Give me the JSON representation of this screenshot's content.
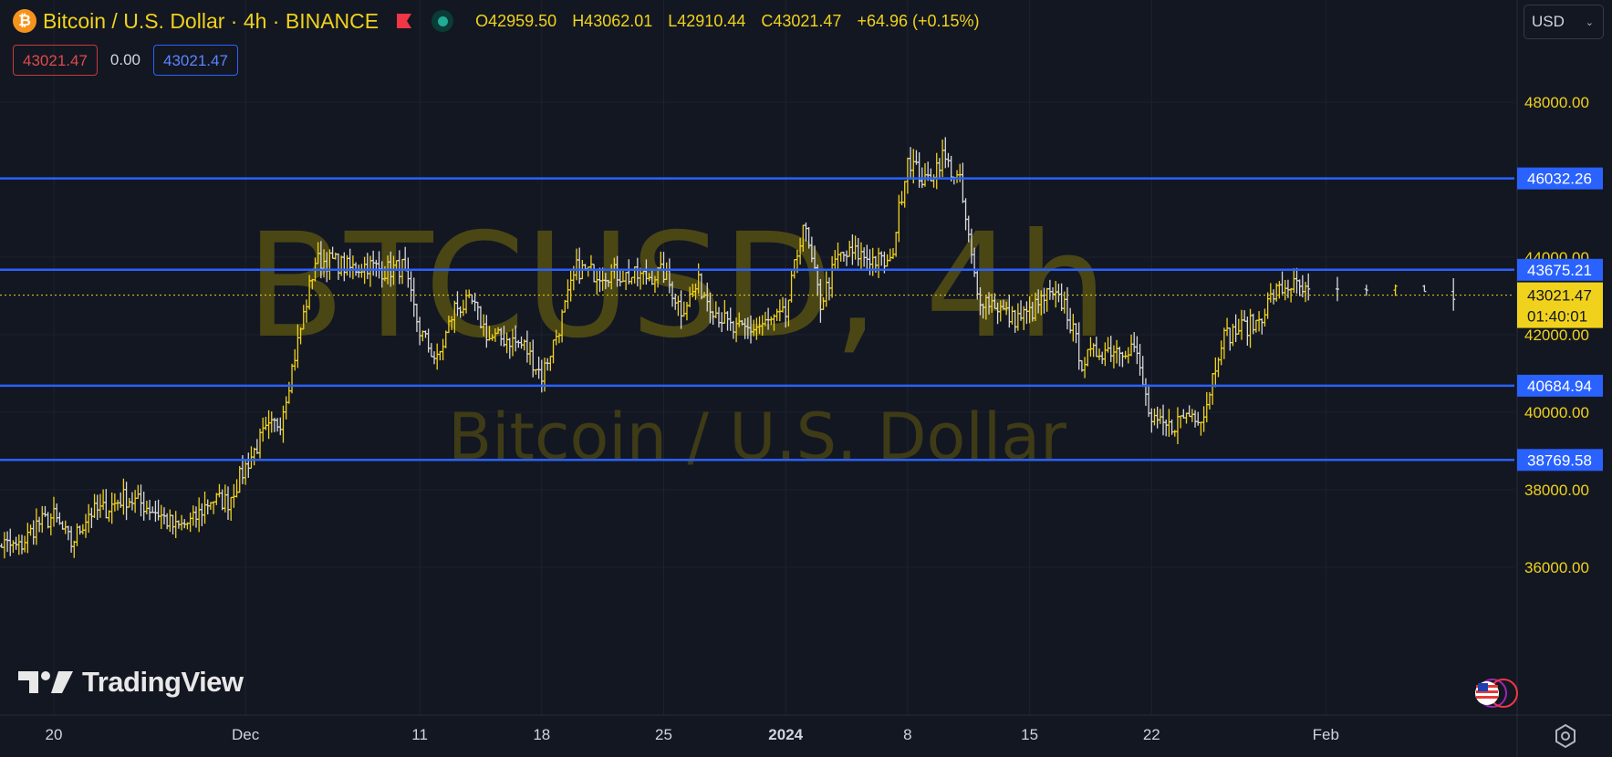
{
  "header": {
    "symbol_title": "Bitcoin / U.S. Dollar · 4h · BINANCE",
    "ohlc": {
      "open": "O42959.50",
      "high": "H43062.01",
      "low": "L42910.44",
      "close": "C43021.47",
      "change": "+64.96 (+0.15%)"
    },
    "bid": "43021.47",
    "spread": "0.00",
    "ask": "43021.47",
    "currency": "USD"
  },
  "icons": {
    "logo": "bitcoin-logo-icon",
    "flag": "red-flag-icon",
    "status": "market-status-icon",
    "currency_dropdown": "chevron-down-icon",
    "settings": "gear-icon",
    "events": "us-flag-icon"
  },
  "watermark": {
    "line1": "BTCUSD, 4h",
    "line2": "Bitcoin / U.S. Dollar"
  },
  "brand": "TradingView",
  "colors": {
    "background": "#131722",
    "candle": "#f0d21c",
    "candle_down": "#d8d8d8",
    "level_line": "#2962ff",
    "last_price": "#f0d21c",
    "watermark": "#4b4715"
  },
  "chart_data": {
    "type": "line",
    "title": "",
    "xlabel": "",
    "ylabel": "",
    "ylim": [
      34800,
      49900
    ],
    "y_ticks": [
      {
        "value": 36000,
        "label": "36000.00"
      },
      {
        "value": 38000,
        "label": "38000.00"
      },
      {
        "value": 40000,
        "label": "40000.00"
      },
      {
        "value": 42000,
        "label": "42000.00"
      },
      {
        "value": 44000,
        "label": "44000.00"
      },
      {
        "value": 48000,
        "label": "48000.00"
      }
    ],
    "x_ticks": [
      {
        "date": "2023-11-20",
        "label": "20",
        "bold": false
      },
      {
        "date": "2023-12-01",
        "label": "Dec",
        "bold": false
      },
      {
        "date": "2023-12-11",
        "label": "11",
        "bold": false
      },
      {
        "date": "2023-12-18",
        "label": "18",
        "bold": false
      },
      {
        "date": "2023-12-25",
        "label": "25",
        "bold": false
      },
      {
        "date": "2024-01-01",
        "label": "2024",
        "bold": true
      },
      {
        "date": "2024-01-08",
        "label": "8",
        "bold": false
      },
      {
        "date": "2024-01-15",
        "label": "15",
        "bold": false
      },
      {
        "date": "2024-01-22",
        "label": "22",
        "bold": false
      },
      {
        "date": "2024-02-01",
        "label": "Feb",
        "bold": false
      }
    ],
    "horizontal_levels": [
      {
        "value": 46032.26,
        "label": "46032.26"
      },
      {
        "value": 43675.21,
        "label": "43675.21"
      },
      {
        "value": 40684.94,
        "label": "40684.94"
      },
      {
        "value": 38769.58,
        "label": "38769.58"
      }
    ],
    "last_price": {
      "value": 43021.47,
      "label": "43021.47",
      "countdown": "01:40:01"
    },
    "series": [
      {
        "style": "ohlc-bars",
        "x": [
          "2023-11-16",
          "2023-11-17",
          "2023-11-18",
          "2023-11-19",
          "2023-11-20",
          "2023-11-21",
          "2023-11-22",
          "2023-11-23",
          "2023-11-24",
          "2023-11-25",
          "2023-11-26",
          "2023-11-27",
          "2023-11-28",
          "2023-11-29",
          "2023-11-30",
          "2023-12-01",
          "2023-12-02",
          "2023-12-03",
          "2023-12-04",
          "2023-12-05",
          "2023-12-06",
          "2023-12-07",
          "2023-12-08",
          "2023-12-09",
          "2023-12-10",
          "2023-12-11",
          "2023-12-12",
          "2023-12-13",
          "2023-12-14",
          "2023-12-15",
          "2023-12-16",
          "2023-12-17",
          "2023-12-18",
          "2023-12-19",
          "2023-12-20",
          "2023-12-21",
          "2023-12-22",
          "2023-12-23",
          "2023-12-24",
          "2023-12-25",
          "2023-12-26",
          "2023-12-27",
          "2023-12-28",
          "2023-12-29",
          "2023-12-30",
          "2023-12-31",
          "2024-01-01",
          "2024-01-02",
          "2024-01-03",
          "2024-01-04",
          "2024-01-05",
          "2024-01-06",
          "2024-01-07",
          "2024-01-08",
          "2024-01-09",
          "2024-01-10",
          "2024-01-11",
          "2024-01-12",
          "2024-01-13",
          "2024-01-14",
          "2024-01-15",
          "2024-01-16",
          "2024-01-17",
          "2024-01-18",
          "2024-01-19",
          "2024-01-20",
          "2024-01-21",
          "2024-01-22",
          "2024-01-23",
          "2024-01-24",
          "2024-01-25",
          "2024-01-26",
          "2024-01-27",
          "2024-01-28",
          "2024-01-29",
          "2024-01-30",
          "2024-01-31"
        ],
        "values": [
          36200,
          36600,
          36500,
          37100,
          37300,
          36600,
          37400,
          37500,
          37800,
          37650,
          37400,
          37000,
          37200,
          37750,
          37700,
          38600,
          39400,
          39800,
          41800,
          43900,
          43900,
          43700,
          43800,
          43650,
          43750,
          42100,
          41300,
          42700,
          42800,
          41900,
          41900,
          41700,
          40950,
          42200,
          43700,
          43600,
          43600,
          43500,
          43500,
          43600,
          42650,
          43300,
          42600,
          42100,
          42150,
          42300,
          42500,
          44900,
          42800,
          44000,
          44100,
          43950,
          43800,
          46600,
          45900,
          46600,
          45900,
          43000,
          42800,
          42400,
          42550,
          43000,
          42800,
          41300,
          41600,
          41650,
          41700,
          39700,
          39600,
          39950,
          39950,
          41900,
          42150,
          42300,
          43050,
          43300,
          43020
        ]
      }
    ]
  }
}
